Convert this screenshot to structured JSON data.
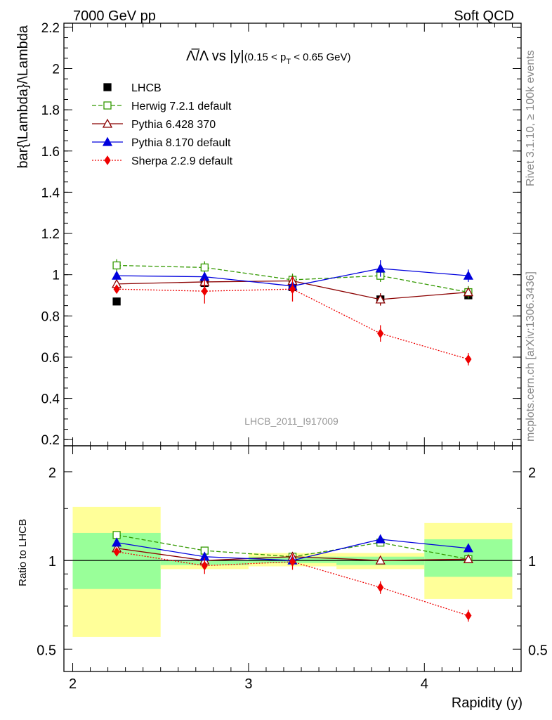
{
  "header": {
    "left": "7000 GeV pp",
    "right": "Soft QCD"
  },
  "side_labels": {
    "rivet": "Rivet 3.1.10, ≥ 100k events",
    "mcplots": "mcplots.cern.ch [arXiv:1306.3436]"
  },
  "chart_data": [
    {
      "type": "scatter",
      "title": "Λ̅/Λ vs |y|",
      "title_suffix": "(0.15 < p",
      "title_sub": "T",
      "title_end": " < 0.65 GeV)",
      "ylabel": "bar{\\Lambda}/\\Lambda",
      "watermark": "LHCB_2011_I917009",
      "xlim": [
        1.95,
        4.55
      ],
      "ylim": [
        0.17,
        2.22
      ],
      "yticks": [
        0.2,
        0.4,
        0.6,
        0.8,
        1,
        1.2,
        1.4,
        1.6,
        1.8,
        2,
        2.2
      ],
      "ytick_labels": [
        "0.2",
        "0.4",
        "0.6",
        "0.8",
        "1",
        "1.2",
        "1.4",
        "1.6",
        "1.8",
        "2",
        "2.2"
      ],
      "x": [
        2.25,
        2.75,
        3.25,
        3.75,
        4.25
      ],
      "series": [
        {
          "name": "LHCB",
          "color": "#000000",
          "marker": "square-filled",
          "values": [
            0.87,
            0.96,
            0.94,
            0.88,
            0.9
          ],
          "err": [
            0.01,
            0.01,
            0.01,
            0.02,
            0.01
          ]
        },
        {
          "name": "Herwig 7.2.1 default",
          "color": "#339900",
          "marker": "square-open",
          "dash": "6,3",
          "values": [
            1.045,
            1.035,
            0.975,
            0.995,
            0.915
          ],
          "err": [
            0.03,
            0.03,
            0.03,
            0.03,
            0.03
          ]
        },
        {
          "name": "Pythia 6.428 370",
          "color": "#8b0000",
          "marker": "triangle-open",
          "values": [
            0.955,
            0.965,
            0.97,
            0.88,
            0.915
          ],
          "err": [
            0.02,
            0.02,
            0.02,
            0.03,
            0.02
          ]
        },
        {
          "name": "Pythia 8.170 default",
          "color": "#0000dd",
          "marker": "triangle-filled",
          "values": [
            0.995,
            0.99,
            0.945,
            1.03,
            0.995
          ],
          "err": [
            0.02,
            0.02,
            0.02,
            0.04,
            0.03
          ]
        },
        {
          "name": "Sherpa 2.2.9 default",
          "color": "#ee0000",
          "marker": "diamond-filled",
          "dash": "2,2",
          "values": [
            0.93,
            0.92,
            0.93,
            0.715,
            0.59
          ],
          "err": [
            0.02,
            0.06,
            0.06,
            0.04,
            0.03
          ]
        }
      ]
    },
    {
      "type": "scatter",
      "xlabel": "Rapidity (y)",
      "ylabel": "Ratio to LHCB",
      "xlim": [
        1.95,
        4.55
      ],
      "ylim": [
        0.42,
        2.45
      ],
      "log_y": true,
      "yticks": [
        0.5,
        1,
        2
      ],
      "ytick_labels": [
        "0.5",
        "1",
        "2"
      ],
      "xticks": [
        2,
        3,
        4
      ],
      "xtick_labels": [
        "2",
        "3",
        "4"
      ],
      "x": [
        2.25,
        2.75,
        3.25,
        3.75,
        4.25
      ],
      "bins": [
        {
          "lo": 2.0,
          "hi": 2.5,
          "inner": [
            0.8,
            1.24
          ],
          "outer": [
            0.55,
            1.52
          ]
        },
        {
          "lo": 2.5,
          "hi": 3.0,
          "inner": [
            0.965,
            1.0
          ],
          "outer": [
            0.935,
            1.0
          ]
        },
        {
          "lo": 3.0,
          "hi": 3.5,
          "inner": [
            0.98,
            1.03
          ],
          "outer": [
            0.955,
            1.06
          ]
        },
        {
          "lo": 3.5,
          "hi": 4.0,
          "inner": [
            0.965,
            1.03
          ],
          "outer": [
            0.935,
            1.06
          ]
        },
        {
          "lo": 4.0,
          "hi": 4.5,
          "inner": [
            0.88,
            1.18
          ],
          "outer": [
            0.74,
            1.34
          ]
        }
      ],
      "series": [
        {
          "name": "Herwig 7.2.1 default",
          "color": "#339900",
          "marker": "square-open",
          "dash": "6,3",
          "values": [
            1.22,
            1.08,
            1.03,
            1.15,
            1.01
          ],
          "err": [
            0.02,
            0.02,
            0.02,
            0.02,
            0.02
          ]
        },
        {
          "name": "Pythia 6.428 370",
          "color": "#8b0000",
          "marker": "triangle-open",
          "values": [
            1.1,
            1.0,
            1.03,
            1.0,
            1.01
          ],
          "err": [
            0.02,
            0.02,
            0.02,
            0.02,
            0.02
          ]
        },
        {
          "name": "Pythia 8.170 default",
          "color": "#0000dd",
          "marker": "triangle-filled",
          "values": [
            1.15,
            1.03,
            1.0,
            1.18,
            1.1
          ],
          "err": [
            0.02,
            0.02,
            0.02,
            0.03,
            0.03
          ]
        },
        {
          "name": "Sherpa 2.2.9 default",
          "color": "#ee0000",
          "marker": "diamond-filled",
          "dash": "2,2",
          "values": [
            1.07,
            0.96,
            0.99,
            0.81,
            0.65
          ],
          "err": [
            0.02,
            0.06,
            0.06,
            0.04,
            0.03
          ]
        }
      ]
    }
  ]
}
